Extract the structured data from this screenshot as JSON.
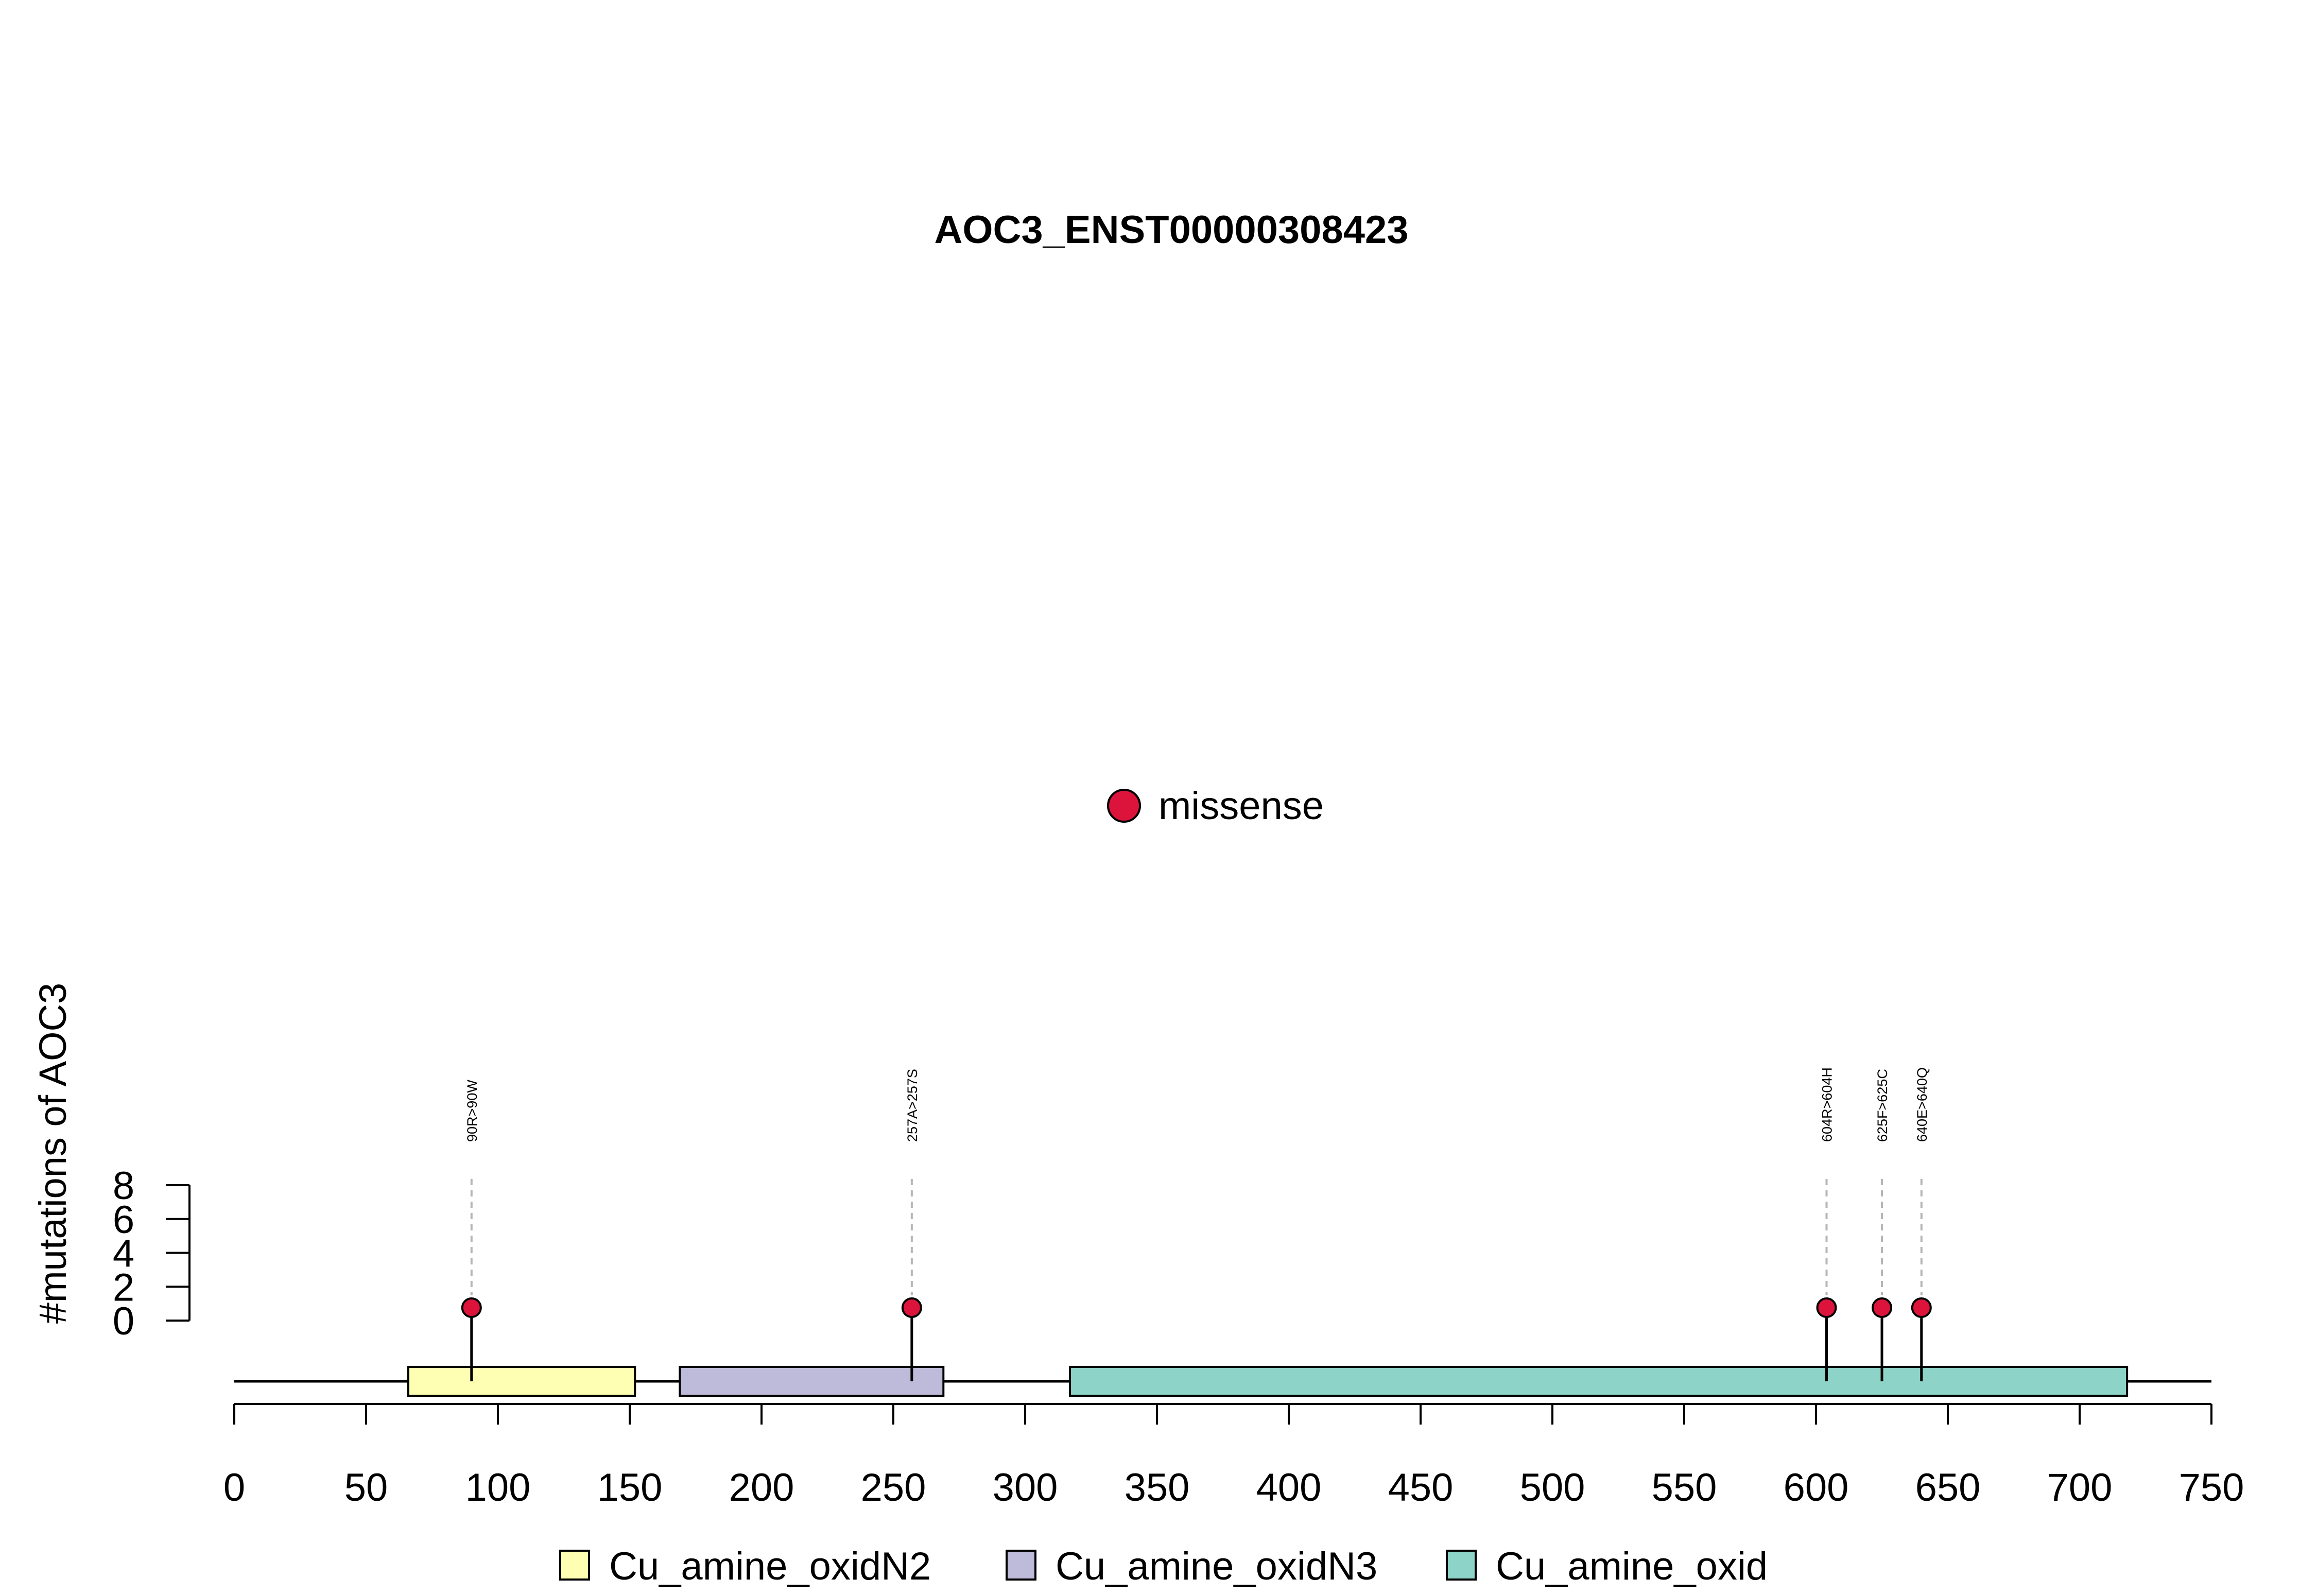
{
  "chart_data": {
    "type": "lollipop",
    "title": "AOC3_ENST00000308423",
    "ylabel": "#mutations of AOC3",
    "x_ticks": [
      0,
      50,
      100,
      150,
      200,
      250,
      300,
      350,
      400,
      450,
      500,
      550,
      600,
      650,
      700,
      750
    ],
    "y_ticks": [
      0,
      2,
      4,
      6,
      8
    ],
    "xlim": [
      0,
      750
    ],
    "ylim": [
      0,
      8
    ],
    "protein_length": 750,
    "mutation_legend": [
      {
        "label": "missense",
        "color": "#dc143c"
      }
    ],
    "domains": [
      {
        "name": "Cu_amine_oxidN2",
        "start": 66,
        "end": 152,
        "color": "#ffffb3"
      },
      {
        "name": "Cu_amine_oxidN3",
        "start": 169,
        "end": 269,
        "color": "#bebada"
      },
      {
        "name": "Cu_amine_oxid",
        "start": 317,
        "end": 718,
        "color": "#8dd3c7"
      }
    ],
    "mutations": [
      {
        "position": 90,
        "label": "90R>90W",
        "count": 1,
        "type": "missense"
      },
      {
        "position": 257,
        "label": "257A>257S",
        "count": 1,
        "type": "missense"
      },
      {
        "position": 604,
        "label": "604R>604H",
        "count": 1,
        "type": "missense"
      },
      {
        "position": 625,
        "label": "625F>625C",
        "count": 1,
        "type": "missense"
      },
      {
        "position": 640,
        "label": "640E>640Q",
        "count": 1,
        "type": "missense"
      }
    ]
  }
}
